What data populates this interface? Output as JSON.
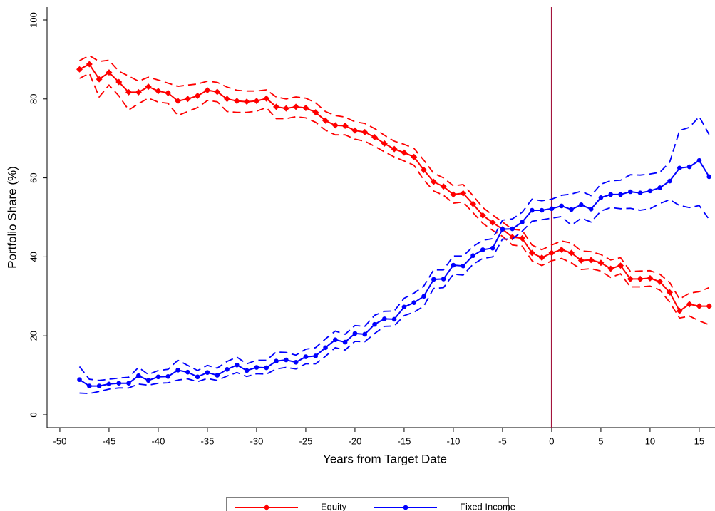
{
  "chart_data": {
    "type": "line",
    "xlabel": "Years from Target Date",
    "ylabel": "Portfolio Share (%)",
    "x": [
      -48,
      -47,
      -46,
      -45,
      -44,
      -43,
      -42,
      -41,
      -40,
      -39,
      -38,
      -37,
      -36,
      -35,
      -34,
      -33,
      -32,
      -31,
      -30,
      -29,
      -28,
      -27,
      -26,
      -25,
      -24,
      -23,
      -22,
      -21,
      -20,
      -19,
      -18,
      -17,
      -16,
      -15,
      -14,
      -13,
      -12,
      -11,
      -10,
      -9,
      -8,
      -7,
      -6,
      -5,
      -4,
      -3,
      -2,
      -1,
      0,
      1,
      2,
      3,
      4,
      5,
      6,
      7,
      8,
      9,
      10,
      11,
      12,
      13,
      14,
      15,
      16
    ],
    "xlim": [
      -51.3,
      16.6
    ],
    "xticks": [
      -50,
      -45,
      -40,
      -35,
      -30,
      -25,
      -20,
      -15,
      -10,
      -5,
      0,
      5,
      10,
      15
    ],
    "ylim": [
      -3.25,
      103.25
    ],
    "yticks": [
      0,
      20,
      40,
      60,
      80,
      100
    ],
    "vline": 0,
    "vline_color": "#a3143c",
    "series": [
      {
        "name": "Equity",
        "color": "#ff0000",
        "marker": "diamond",
        "values": [
          87.5,
          88.8,
          85,
          86.7,
          84.3,
          81.7,
          81.7,
          83.1,
          82,
          81.5,
          79.5,
          80,
          80.8,
          82.2,
          81.8,
          80,
          79.5,
          79.3,
          79.5,
          80.1,
          78,
          77.6,
          78,
          77.7,
          76.6,
          74.5,
          73.3,
          73.2,
          72,
          71.6,
          70.3,
          68.7,
          67.3,
          66.4,
          65.3,
          62,
          59,
          57.8,
          55.8,
          56.1,
          53.4,
          50.5,
          48.7,
          47,
          45,
          44.7,
          41,
          39.8,
          41,
          41.8,
          41,
          39.1,
          39.2,
          38.5,
          37,
          37.8,
          34.4,
          34.4,
          34.6,
          33.7,
          31,
          26.3,
          28,
          27.5,
          27.5
        ],
        "upper": [
          89.7,
          91,
          89.5,
          89.8,
          87,
          85.8,
          84.5,
          85.5,
          84.8,
          84,
          83.2,
          83.5,
          83.8,
          84.5,
          84.2,
          83,
          82.2,
          82,
          82,
          82.3,
          80.5,
          80,
          80.5,
          80.2,
          79,
          76.8,
          75.8,
          75.4,
          74.2,
          73.8,
          72.5,
          70.8,
          69.3,
          68.5,
          67.5,
          64.5,
          61.2,
          60,
          58,
          58.3,
          55.5,
          52.5,
          50.6,
          48.8,
          47,
          46.7,
          43,
          41.8,
          43,
          44,
          43.5,
          41.5,
          41.3,
          40.6,
          39.2,
          39.8,
          36.3,
          36.4,
          36.5,
          35.6,
          33.5,
          29.3,
          30.8,
          31.2,
          32.2
        ],
        "lower": [
          85.2,
          86.5,
          80.5,
          83.5,
          80.8,
          77.2,
          78.8,
          80.2,
          79.2,
          78.9,
          75.8,
          76.8,
          77.8,
          79.6,
          79.3,
          76.8,
          76.6,
          76.6,
          76.9,
          77.8,
          75,
          75,
          75.5,
          75.2,
          74.1,
          72.1,
          70.9,
          70.9,
          69.8,
          69.3,
          68,
          66.6,
          65.3,
          64.3,
          63.2,
          59.5,
          56.7,
          55.6,
          53.6,
          53.9,
          51.2,
          48.5,
          46.7,
          45.2,
          43,
          42.7,
          39,
          37.8,
          39,
          39.6,
          38.5,
          36.8,
          37,
          36.4,
          34.8,
          35.7,
          32.4,
          32.4,
          32.6,
          31.6,
          28.5,
          24.5,
          25,
          23.8,
          22.8
        ]
      },
      {
        "name": "Fixed Income",
        "color": "#0000ff",
        "marker": "circle",
        "values": [
          8.9,
          7.3,
          7.3,
          7.8,
          8,
          8,
          9.9,
          8.7,
          9.6,
          9.7,
          11.3,
          10.8,
          9.6,
          10.7,
          10,
          11.5,
          12.6,
          11.2,
          12,
          11.9,
          13.6,
          13.9,
          13.3,
          14.7,
          14.9,
          17,
          19,
          18.4,
          20.6,
          20.4,
          22.9,
          24.3,
          24.2,
          27.3,
          28.4,
          30,
          34.3,
          34.4,
          37.9,
          37.7,
          40.3,
          41.8,
          42.2,
          47,
          47.1,
          48.8,
          51.8,
          51.8,
          52.2,
          52.9,
          52,
          53.2,
          52.1,
          55,
          55.8,
          55.8,
          56.5,
          56.2,
          56.7,
          57.5,
          59.2,
          62.5,
          62.8,
          64.4,
          60.3
        ],
        "upper": [
          12.2,
          9,
          8.7,
          9,
          9.3,
          9.5,
          12,
          10.2,
          11.2,
          11.5,
          13.8,
          12.5,
          11.2,
          12.5,
          11.8,
          13.5,
          14.6,
          12.9,
          13.8,
          13.8,
          15.9,
          15.8,
          15.1,
          16.6,
          17,
          19.2,
          21.2,
          20.4,
          22.6,
          22.4,
          25.2,
          26.2,
          26.3,
          29.5,
          30.8,
          32.6,
          36.7,
          36.7,
          40.2,
          40.2,
          42.6,
          44.2,
          44.6,
          49.3,
          49.6,
          51.3,
          54.6,
          54.2,
          54.6,
          55.6,
          55.9,
          56.6,
          55.5,
          58.4,
          59.3,
          59.4,
          60.8,
          60.7,
          61,
          61.4,
          64,
          72,
          72.8,
          75.5,
          71
        ],
        "lower": [
          5.5,
          5.4,
          5.9,
          6.5,
          6.8,
          6.8,
          7.8,
          7.5,
          8,
          8.1,
          8.8,
          9.1,
          8.4,
          9.2,
          8.7,
          9.8,
          10.7,
          9.7,
          10.4,
          10.3,
          11.6,
          12,
          11.6,
          12.9,
          12.9,
          14.8,
          17,
          16.4,
          18.6,
          18.5,
          20.6,
          22.4,
          22.5,
          25.1,
          26,
          27.5,
          32,
          32.2,
          35.6,
          35.4,
          38.1,
          39.6,
          40,
          44.5,
          44.5,
          46.5,
          49,
          49.4,
          49.8,
          50.2,
          48,
          49.8,
          48.8,
          51.6,
          52.5,
          52.2,
          52.3,
          51.8,
          52.2,
          53.5,
          54.5,
          53,
          52.5,
          53,
          49.5
        ]
      }
    ]
  }
}
